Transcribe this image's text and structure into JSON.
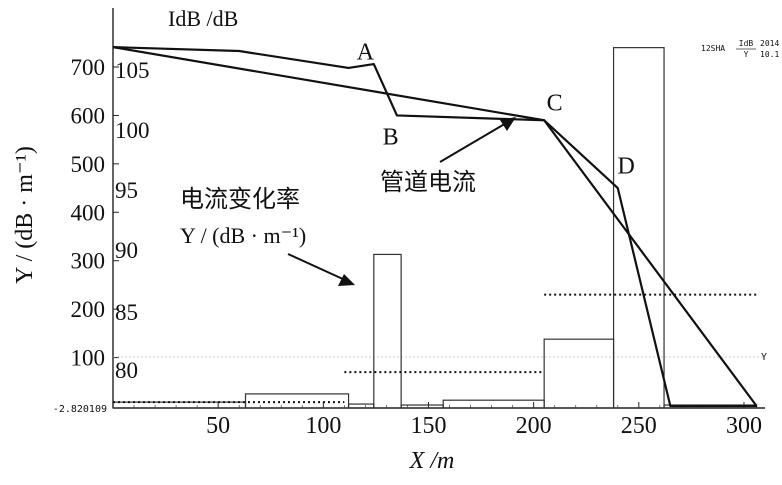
{
  "chart_data": {
    "type": "line",
    "left_axis_title": "Y / (dB · m⁻¹)",
    "right_axis_title": "I_dB /dB",
    "x_axis_title": "X /m",
    "x_ticks": [
      "50",
      "100",
      "150",
      "200",
      "250",
      "300"
    ],
    "y_left_ticks": [
      "100",
      "200",
      "300",
      "400",
      "500",
      "600",
      "700"
    ],
    "y_right_ticks": [
      "80",
      "85",
      "90",
      "95",
      "100",
      "105"
    ],
    "min_label": "-2.820109",
    "xlim": [
      0,
      310
    ],
    "ylim_rate": [
      -2.820109,
      745
    ],
    "ylim_current": [
      0,
      0
    ],
    "series": [
      {
        "name": "管道电流I_dB",
        "kind": "line",
        "x": [
          0,
          60,
          112,
          124,
          135,
          205,
          240,
          265,
          306
        ],
        "y": [
          741,
          733,
          698,
          706,
          600,
          590,
          450,
          0,
          0
        ]
      },
      {
        "kind": "line",
        "x": [
          0,
          205,
          306
        ],
        "y": [
          741,
          590,
          0
        ]
      },
      {
        "name": "电流变化率 Y / (dB · m⁻¹)",
        "kind": "bar",
        "bins": [
          {
            "x0": 0,
            "x1": 63,
            "y": 8
          },
          {
            "x0": 63,
            "x1": 112,
            "y": 25
          },
          {
            "x0": 112,
            "x1": 124,
            "y": 4
          },
          {
            "x0": 124,
            "x1": 137,
            "y": 313
          },
          {
            "x0": 137,
            "x1": 157,
            "y": 2
          },
          {
            "x0": 157,
            "x1": 205,
            "y": 12
          },
          {
            "x0": 205,
            "x1": 238,
            "y": 138
          },
          {
            "x0": 238,
            "x1": 262,
            "y": 740
          },
          {
            "x0": 262,
            "x1": 306,
            "y": 2
          }
        ]
      },
      {
        "kind": "dotted-level",
        "segments": [
          {
            "x0": 0,
            "x1": 110,
            "y": 8
          },
          {
            "x0": 110,
            "x1": 205,
            "y": 70
          },
          {
            "x0": 205,
            "x1": 306,
            "y": 230
          }
        ]
      }
    ],
    "annotations": [
      {
        "text": "A",
        "x": 120,
        "y": 716
      },
      {
        "text": "B",
        "x": 132,
        "y": 540
      },
      {
        "text": "C",
        "x": 210,
        "y": 610
      },
      {
        "text": "D",
        "x": 244,
        "y": 480
      }
    ],
    "callouts": [
      {
        "lines": [
          "管道电流I_dB"
        ]
      },
      {
        "lines": [
          "电流变化率",
          "Y / (dB · m⁻¹)"
        ]
      }
    ],
    "mean_label": "Y",
    "topright_note": {
      "prefix": "12SHA",
      "num": "IdB",
      "den": "Y",
      "tail1": "2014",
      "tail2": "10.1"
    },
    "grid": false,
    "legend": "none"
  }
}
